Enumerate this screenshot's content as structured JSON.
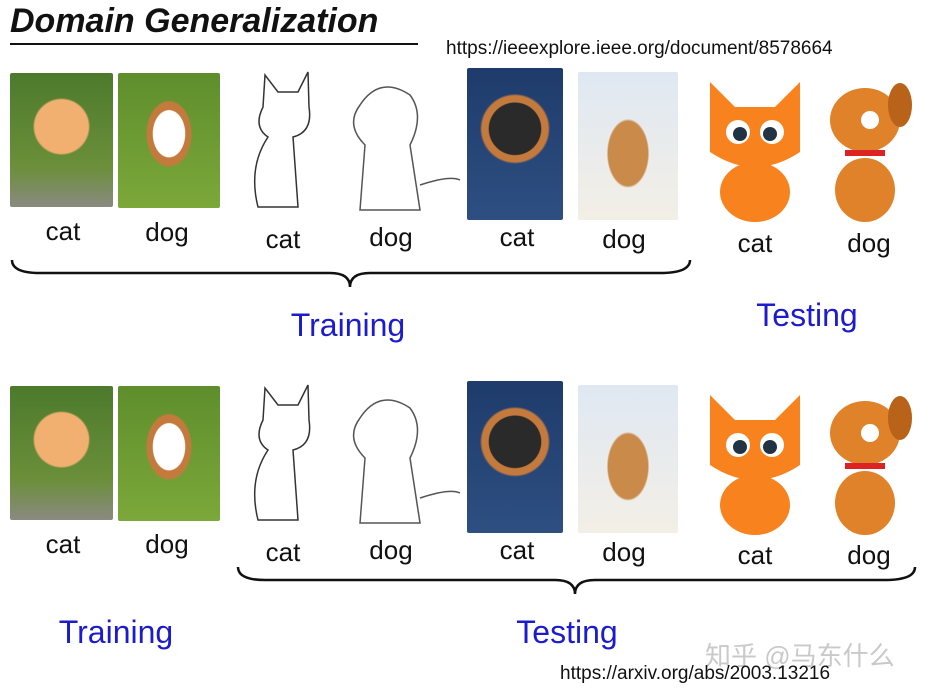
{
  "title": "Domain Generalization",
  "url_top": "https://ieeexplore.ieee.org/document/8578664",
  "url_bottom": "https://arxiv.org/abs/2003.13216",
  "watermark": "知乎 @马东什么",
  "colors": {
    "accent_blue": "#1c1ccc"
  },
  "row1": {
    "labels": [
      "cat",
      "dog",
      "cat",
      "dog",
      "cat",
      "dog",
      "cat",
      "dog"
    ],
    "training": "Training",
    "testing": "Testing"
  },
  "row2": {
    "labels": [
      "cat",
      "dog",
      "cat",
      "dog",
      "cat",
      "dog",
      "cat",
      "dog"
    ],
    "training": "Training",
    "testing": "Testing"
  }
}
